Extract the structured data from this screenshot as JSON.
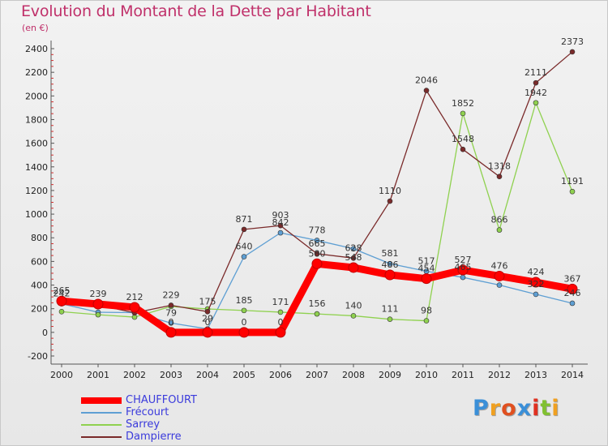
{
  "title": "Evolution du Montant de la Dette par Habitant",
  "subtitle": "(en €)",
  "logo_text": "Proxiti",
  "colors": {
    "title": "#c0306a",
    "legend_text": "#3b3bdc"
  },
  "chart_data": {
    "type": "line",
    "title": "Evolution du Montant de la Dette par Habitant",
    "ylabel": "(en €)",
    "xlabel": "",
    "x": [
      "2000",
      "2001",
      "2002",
      "2003",
      "2004",
      "2005",
      "2006",
      "2007",
      "2008",
      "2009",
      "2010",
      "2011",
      "2012",
      "2013",
      "2014"
    ],
    "ylim": [
      -200,
      2400
    ],
    "yticks": [
      -200,
      0,
      200,
      400,
      600,
      800,
      1000,
      1200,
      1400,
      1600,
      1800,
      2000,
      2200,
      2400
    ],
    "grid": false,
    "legend_position": "bottom-left",
    "series": [
      {
        "name": "CHAUFFOURT",
        "color": "#ff0000",
        "values": [
          265,
          239,
          212,
          0,
          0,
          0,
          0,
          580,
          548,
          486,
          454,
          527,
          476,
          424,
          367
        ],
        "labels": [
          "265",
          "239",
          "212",
          "0",
          "0",
          "0",
          "0",
          "580",
          "548",
          "486",
          "454",
          "527",
          "476",
          "424",
          "367"
        ],
        "thick": true
      },
      {
        "name": "Frécourt",
        "color": "#5e9fd3",
        "values": [
          242,
          170,
          167,
          79,
          29,
          640,
          842,
          778,
          707,
          581,
          517,
          465,
          400,
          322,
          246
        ],
        "labels": [
          "242",
          "",
          "",
          "79",
          "29",
          "640",
          "842",
          "778",
          "",
          "581",
          "517",
          "465",
          "",
          "322",
          "246"
        ]
      },
      {
        "name": "Sarrey",
        "color": "#8fd14f",
        "values": [
          175,
          149,
          129,
          219,
          198,
          185,
          171,
          156,
          140,
          111,
          98,
          1852,
          866,
          1942,
          1191
        ],
        "labels": [
          "",
          "",
          "",
          "",
          "",
          "185",
          "171",
          "156",
          "140",
          "111",
          "98",
          "1852",
          "866",
          "1942",
          "1191"
        ]
      },
      {
        "name": "Dampierre",
        "color": "#7a2a2a",
        "values": [
          265,
          232,
          165,
          229,
          175,
          871,
          903,
          665,
          628,
          1110,
          2046,
          1548,
          1318,
          2111,
          2373
        ],
        "labels": [
          "",
          "",
          "",
          "229",
          "175",
          "871",
          "903",
          "665",
          "628",
          "1110",
          "2046",
          "1548",
          "1318",
          "2111",
          "2373"
        ]
      }
    ]
  }
}
